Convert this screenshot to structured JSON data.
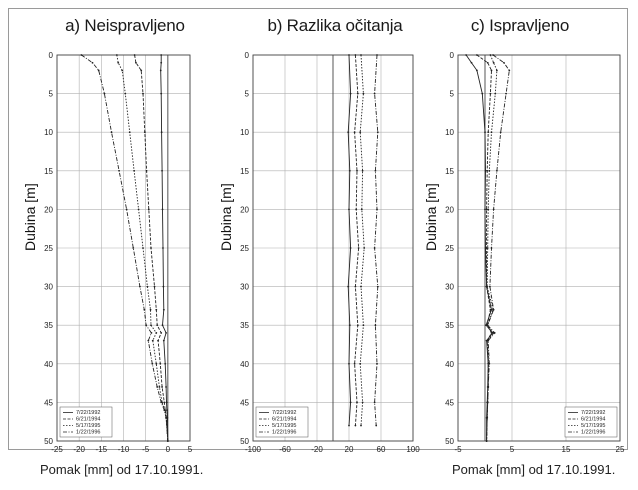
{
  "panel_titles": [
    "a) Neispravljeno",
    "b) Razlika očitanja",
    "c) Ispravljeno"
  ],
  "footer": {
    "left": "Pomak [mm] od 17.10.1991.",
    "right": "Pomak [mm] od 17.10.1991."
  },
  "colors": {
    "line": "#222222",
    "grid": "#b0b0b0",
    "frame": "#9a9a9a"
  },
  "chart_data": [
    {
      "type": "line",
      "title": "a) Neispravljeno",
      "ylabel": "Dubina [m]",
      "xlabel": "",
      "xlim": [
        -25,
        5
      ],
      "ylim": [
        0,
        50
      ],
      "y_inverted": true,
      "xticks": [
        -25,
        -20,
        -15,
        -10,
        -5,
        0,
        5
      ],
      "yticks": [
        0,
        5,
        10,
        15,
        20,
        25,
        30,
        35,
        40,
        45,
        50
      ],
      "grid": true,
      "legend": {
        "position": "bottom-left",
        "entries": [
          "7/22/1992",
          "6/21/1994",
          "5/17/1995",
          "1/22/1996"
        ]
      },
      "series": [
        {
          "name": "7/22/1992",
          "depth": [
            0,
            1,
            2,
            5,
            10,
            15,
            20,
            25,
            30,
            33,
            35,
            36,
            37,
            40,
            43,
            45,
            46,
            47,
            50
          ],
          "x": [
            -1.5,
            -1.5,
            -1.6,
            -1.5,
            -1.4,
            -1.3,
            -1.2,
            -1.1,
            -1.0,
            -0.9,
            -1.2,
            -0.4,
            -0.9,
            -0.6,
            -0.4,
            -0.3,
            -0.2,
            -0.1,
            0
          ]
        },
        {
          "name": "6/21/1994",
          "depth": [
            0,
            1,
            2,
            5,
            10,
            15,
            20,
            25,
            30,
            33,
            35,
            36,
            37,
            40,
            43,
            45,
            46,
            47,
            50
          ],
          "x": [
            -7.5,
            -7.2,
            -6.0,
            -5.6,
            -5.2,
            -4.8,
            -4.3,
            -3.8,
            -3.0,
            -2.6,
            -2.4,
            -1.5,
            -2.2,
            -1.7,
            -1.3,
            -0.8,
            -0.6,
            -0.3,
            0
          ]
        },
        {
          "name": "5/17/1995",
          "depth": [
            0,
            1,
            2,
            5,
            10,
            15,
            20,
            25,
            30,
            33,
            35,
            36,
            37,
            40,
            43,
            45,
            46,
            47,
            50
          ],
          "x": [
            -11.5,
            -11.2,
            -10.3,
            -9.6,
            -8.6,
            -7.6,
            -6.6,
            -5.6,
            -4.6,
            -3.9,
            -3.8,
            -2.6,
            -3.4,
            -2.6,
            -1.9,
            -1.3,
            -0.7,
            -0.4,
            0
          ]
        },
        {
          "name": "1/22/1996",
          "depth": [
            0,
            1,
            2,
            5,
            10,
            15,
            20,
            25,
            30,
            33,
            35,
            36,
            37,
            40,
            43,
            45,
            46,
            47,
            50
          ],
          "x": [
            -19.5,
            -17.0,
            -15.6,
            -14.3,
            -12.7,
            -11.0,
            -9.3,
            -7.8,
            -6.3,
            -5.3,
            -4.9,
            -3.7,
            -4.4,
            -3.5,
            -2.4,
            -1.5,
            -0.8,
            -0.4,
            0
          ]
        }
      ]
    },
    {
      "type": "line",
      "title": "b) Razlika očitanja",
      "ylabel": "Dubina [m]",
      "xlabel": "",
      "xlim": [
        -100,
        100
      ],
      "ylim": [
        0,
        50
      ],
      "y_inverted": true,
      "xticks": [
        -100,
        -60,
        -20,
        20,
        60,
        100
      ],
      "yticks": [
        0,
        5,
        10,
        15,
        20,
        25,
        30,
        35,
        40,
        45,
        50
      ],
      "grid": true,
      "legend": {
        "position": "bottom-left",
        "entries": [
          "7/22/1992",
          "6/21/1994",
          "5/17/1995",
          "1/22/1996"
        ]
      },
      "series": [
        {
          "name": "7/22/1992",
          "depth": [
            0,
            5,
            10,
            15,
            20,
            25,
            30,
            35,
            40,
            45,
            48
          ],
          "x": [
            20,
            22,
            19,
            21,
            20,
            22,
            19,
            21,
            20,
            22,
            20
          ]
        },
        {
          "name": "6/21/1994",
          "depth": [
            0,
            5,
            10,
            15,
            20,
            25,
            30,
            35,
            40,
            45,
            48
          ],
          "x": [
            28,
            31,
            27,
            30,
            29,
            32,
            28,
            31,
            27,
            30,
            28
          ]
        },
        {
          "name": "5/17/1995",
          "depth": [
            0,
            5,
            10,
            15,
            20,
            25,
            30,
            35,
            40,
            45,
            48
          ],
          "x": [
            35,
            38,
            34,
            37,
            36,
            39,
            35,
            38,
            34,
            37,
            35
          ]
        },
        {
          "name": "1/22/1996",
          "depth": [
            0,
            5,
            10,
            15,
            20,
            25,
            30,
            35,
            40,
            45,
            48
          ],
          "x": [
            55,
            52,
            56,
            53,
            55,
            52,
            56,
            53,
            55,
            52,
            54
          ]
        }
      ]
    },
    {
      "type": "line",
      "title": "c) Ispravljeno",
      "ylabel": "Dubina [m]",
      "xlabel": "",
      "xlim": [
        -5,
        25
      ],
      "ylim": [
        0,
        50
      ],
      "y_inverted": true,
      "xticks": [
        -5,
        5,
        15,
        25
      ],
      "yticks": [
        0,
        5,
        10,
        15,
        20,
        25,
        30,
        35,
        40,
        45,
        50
      ],
      "grid": true,
      "legend": {
        "position": "bottom-right",
        "entries": [
          "7/22/1992",
          "6/21/1994",
          "5/17/1995",
          "1/22/1996"
        ]
      },
      "series": [
        {
          "name": "7/22/1992",
          "depth": [
            0,
            1,
            2,
            5,
            10,
            15,
            20,
            25,
            30,
            33,
            35,
            36,
            37,
            40,
            43,
            45,
            47,
            50
          ],
          "x": [
            -3.5,
            -2.5,
            -1.5,
            -0.5,
            0.0,
            0.1,
            0.0,
            0.1,
            0.3,
            1.2,
            0.2,
            1.4,
            0.3,
            0.6,
            0.5,
            0.4,
            0.3,
            0.3
          ]
        },
        {
          "name": "6/21/1994",
          "depth": [
            0,
            1,
            2,
            5,
            10,
            15,
            20,
            25,
            30,
            33,
            35,
            36,
            37,
            40,
            43,
            45,
            47,
            50
          ],
          "x": [
            -1.5,
            0.5,
            1.2,
            1.0,
            0.6,
            0.4,
            0.3,
            0.3,
            0.3,
            1.0,
            0.4,
            1.2,
            0.4,
            0.6,
            0.6,
            0.5,
            0.4,
            0.3
          ]
        },
        {
          "name": "5/17/1995",
          "depth": [
            0,
            1,
            2,
            5,
            10,
            15,
            20,
            25,
            30,
            33,
            35,
            36,
            37,
            40,
            43,
            45,
            47,
            50
          ],
          "x": [
            1.0,
            1.6,
            2.2,
            1.9,
            1.2,
            0.8,
            0.6,
            0.5,
            0.4,
            1.5,
            0.4,
            1.6,
            0.5,
            0.7,
            0.6,
            0.5,
            0.4,
            0.3
          ]
        },
        {
          "name": "1/22/1996",
          "depth": [
            0,
            1,
            2,
            5,
            10,
            15,
            20,
            25,
            30,
            33,
            35,
            36,
            37,
            40,
            43,
            45,
            47,
            50
          ],
          "x": [
            1.5,
            3.5,
            4.5,
            3.9,
            2.9,
            2.2,
            1.6,
            1.2,
            0.9,
            1.6,
            0.5,
            1.8,
            0.6,
            0.8,
            0.6,
            0.5,
            0.4,
            0.3
          ]
        }
      ]
    }
  ]
}
